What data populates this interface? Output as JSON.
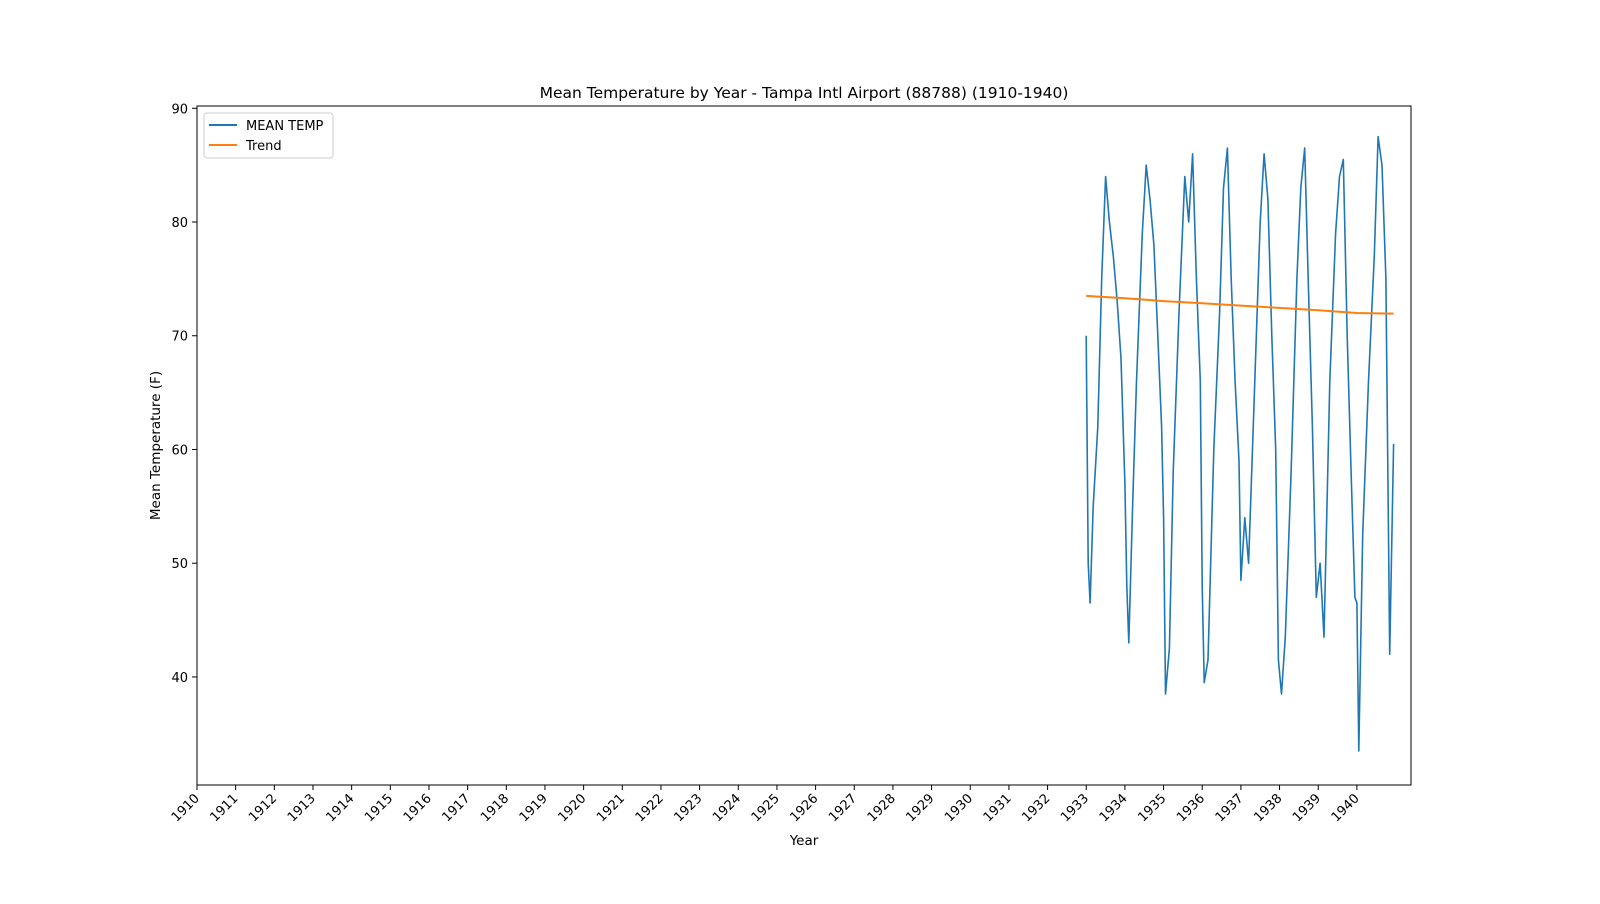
{
  "chart_data": {
    "type": "line",
    "title": "Mean Temperature by Year - Tampa Intl Airport (88788) (1910-1940)",
    "xlabel": "Year",
    "ylabel": "Mean Temperature (F)",
    "xlim": [
      1910,
      1941.4
    ],
    "ylim": [
      30.5,
      90.2
    ],
    "x_ticks": [
      "1910",
      "1911",
      "1912",
      "1913",
      "1914",
      "1915",
      "1916",
      "1917",
      "1918",
      "1919",
      "1920",
      "1921",
      "1922",
      "1923",
      "1924",
      "1925",
      "1926",
      "1927",
      "1928",
      "1929",
      "1930",
      "1931",
      "1932",
      "1933",
      "1934",
      "1935",
      "1936",
      "1937",
      "1938",
      "1939",
      "1940"
    ],
    "y_ticks": [
      40,
      50,
      60,
      70,
      80,
      90
    ],
    "legend_position": "top-left",
    "colors": {
      "mean_temp": "#1f77b4",
      "trend": "#ff7f0e"
    },
    "series": [
      {
        "name": "MEAN TEMP",
        "x": [
          1933.0,
          1933.05,
          1933.1,
          1933.18,
          1933.3,
          1933.4,
          1933.5,
          1933.6,
          1933.7,
          1933.8,
          1933.9,
          1934.0,
          1934.05,
          1934.1,
          1934.2,
          1934.3,
          1934.45,
          1934.55,
          1934.65,
          1934.75,
          1934.85,
          1934.95,
          1935.0,
          1935.05,
          1935.15,
          1935.25,
          1935.4,
          1935.55,
          1935.65,
          1935.75,
          1935.85,
          1935.95,
          1936.0,
          1936.05,
          1936.15,
          1936.3,
          1936.45,
          1936.55,
          1936.65,
          1936.75,
          1936.85,
          1936.95,
          1937.0,
          1937.1,
          1937.2,
          1937.35,
          1937.5,
          1937.6,
          1937.7,
          1937.8,
          1937.9,
          1937.97,
          1938.05,
          1938.15,
          1938.3,
          1938.45,
          1938.55,
          1938.65,
          1938.75,
          1938.85,
          1938.95,
          1939.05,
          1939.15,
          1939.3,
          1939.45,
          1939.55,
          1939.65,
          1939.75,
          1939.85,
          1939.95,
          1940.0,
          1940.05,
          1940.15,
          1940.3,
          1940.45,
          1940.55,
          1940.65,
          1940.75,
          1940.85,
          1940.95
        ],
        "values": [
          70,
          50,
          46.5,
          55,
          62,
          75,
          84,
          80,
          77,
          73,
          68,
          57,
          48,
          43,
          55,
          66,
          79,
          85,
          82,
          78,
          70,
          62,
          54,
          38.5,
          42.5,
          58,
          72,
          84,
          80,
          86,
          75,
          66,
          48,
          39.5,
          41.5,
          60,
          72,
          83,
          86.5,
          75,
          66,
          59,
          48.5,
          54,
          50,
          65,
          80,
          86,
          82,
          70,
          60,
          41.5,
          38.5,
          43.5,
          58,
          75,
          83,
          86.5,
          74,
          62,
          47,
          50,
          43.5,
          66,
          79,
          84,
          85.5,
          70,
          58,
          47,
          46.5,
          33.5,
          52.5,
          66,
          77,
          87.5,
          85,
          75,
          42,
          60.5
        ]
      },
      {
        "name": "Trend",
        "x": [
          1933.0,
          1934.0,
          1935.0,
          1936.0,
          1937.0,
          1938.0,
          1939.0,
          1940.0,
          1940.95
        ],
        "values": [
          73.5,
          73.3,
          73.05,
          72.85,
          72.65,
          72.45,
          72.25,
          72.0,
          71.95
        ]
      }
    ]
  }
}
